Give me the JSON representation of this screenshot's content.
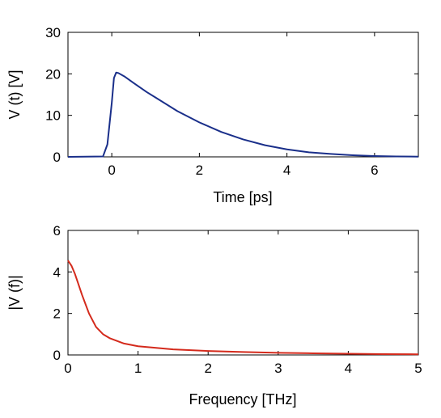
{
  "chart_data": [
    {
      "type": "line",
      "title": "",
      "xlabel": "Time [ps]",
      "ylabel": "V (t) [V]",
      "xlim": [
        -1,
        7
      ],
      "ylim": [
        0,
        30
      ],
      "xticks": [
        0,
        2,
        4,
        6
      ],
      "yticks": [
        0,
        10,
        20,
        30
      ],
      "grid": false,
      "series": [
        {
          "color": "#1a2f8a",
          "x": [
            -1,
            -0.2,
            -0.1,
            0,
            0.05,
            0.1,
            0.15,
            0.3,
            0.5,
            0.8,
            1.0,
            1.5,
            2.0,
            2.5,
            3.0,
            3.5,
            4.0,
            4.5,
            5.0,
            5.5,
            6.0,
            6.5,
            7.0
          ],
          "y": [
            0,
            0.1,
            3,
            13,
            19,
            20.3,
            20.2,
            19.3,
            17.8,
            15.6,
            14.3,
            11.0,
            8.3,
            6.0,
            4.2,
            2.8,
            1.8,
            1.1,
            0.7,
            0.4,
            0.2,
            0.1,
            0.05
          ]
        }
      ]
    },
    {
      "type": "line",
      "title": "",
      "xlabel": "Frequency [THz]",
      "ylabel": "|V (f)|",
      "xlim": [
        0,
        5
      ],
      "ylim": [
        0,
        6
      ],
      "xticks": [
        0,
        1,
        2,
        3,
        4,
        5
      ],
      "yticks": [
        0,
        2,
        4,
        6
      ],
      "grid": false,
      "series": [
        {
          "color": "#d42a1c",
          "x": [
            0,
            0.05,
            0.1,
            0.15,
            0.2,
            0.3,
            0.4,
            0.5,
            0.6,
            0.8,
            1.0,
            1.5,
            2.0,
            2.5,
            3.0,
            3.5,
            4.0,
            4.5,
            5.0
          ],
          "y": [
            4.55,
            4.3,
            3.9,
            3.4,
            2.9,
            2.0,
            1.35,
            1.0,
            0.8,
            0.55,
            0.42,
            0.27,
            0.19,
            0.14,
            0.1,
            0.08,
            0.06,
            0.04,
            0.03
          ]
        }
      ]
    }
  ]
}
